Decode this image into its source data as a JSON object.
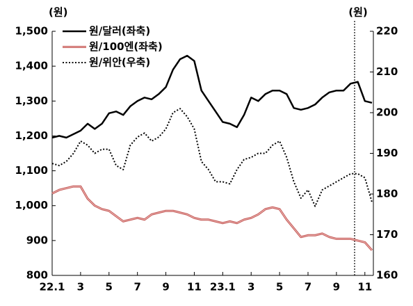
{
  "chart_data": {
    "type": "line",
    "y_label": "(원)",
    "y2_label": "(원)",
    "categories": [
      "22.1",
      null,
      null,
      null,
      "3",
      null,
      null,
      null,
      "5",
      null,
      null,
      null,
      "7",
      null,
      null,
      null,
      "9",
      null,
      null,
      null,
      "11",
      null,
      null,
      null,
      "23.1",
      null,
      null,
      null,
      "3",
      null,
      null,
      null,
      "5",
      null,
      null,
      null,
      "7",
      null,
      null,
      null,
      "9",
      null,
      null,
      null,
      "11",
      null
    ],
    "series": [
      {
        "name": "원/달러(좌축)",
        "color": "#000000",
        "style": "solid",
        "values": [
          1195,
          1200,
          1195,
          1205,
          1215,
          1235,
          1220,
          1235,
          1265,
          1270,
          1260,
          1285,
          1300,
          1310,
          1305,
          1320,
          1340,
          1390,
          1420,
          1430,
          1415,
          1330,
          1300,
          1270,
          1240,
          1235,
          1225,
          1260,
          1310,
          1300,
          1320,
          1330,
          1330,
          1320,
          1280,
          1275,
          1280,
          1290,
          1310,
          1325,
          1330,
          1330,
          1350,
          1355,
          1300,
          1295
        ]
      },
      {
        "name": "원/100엔(좌축)",
        "color": "#c0504d",
        "style": "double",
        "values": [
          1035,
          1045,
          1050,
          1055,
          1055,
          1020,
          1000,
          990,
          985,
          970,
          955,
          960,
          965,
          960,
          975,
          980,
          985,
          985,
          980,
          975,
          965,
          960,
          960,
          955,
          950,
          955,
          950,
          960,
          965,
          975,
          990,
          995,
          990,
          960,
          935,
          910,
          915,
          915,
          920,
          910,
          905,
          905,
          905,
          900,
          895,
          872
        ]
      },
      {
        "name": "원/위안(우축)",
        "color": "#000000",
        "style": "dotted",
        "axis": "y2",
        "values": [
          187.5,
          187,
          188,
          190,
          193,
          192,
          190,
          191,
          191,
          187,
          186,
          192,
          194,
          195,
          193,
          194,
          196,
          200,
          201,
          199,
          196,
          188,
          186,
          183,
          183,
          182.5,
          186,
          188.5,
          189,
          190,
          190,
          192,
          193,
          189,
          183,
          179,
          181,
          177,
          181,
          182,
          183,
          184,
          185,
          185,
          184,
          178
        ]
      }
    ],
    "ylim": [
      800,
      1500
    ],
    "yticks": [
      800,
      900,
      {
        "value": 1000,
        "label": "1,000"
      },
      {
        "value": 1100,
        "label": "1,100"
      },
      {
        "value": 1200,
        "label": "1,200"
      },
      {
        "value": 1300,
        "label": "1,300"
      },
      {
        "value": 1400,
        "label": "1,400"
      },
      {
        "value": 1500,
        "label": "1,500"
      }
    ],
    "y2lim": [
      160,
      220
    ],
    "y2ticks": [
      160,
      170,
      180,
      190,
      200,
      210,
      220
    ]
  }
}
